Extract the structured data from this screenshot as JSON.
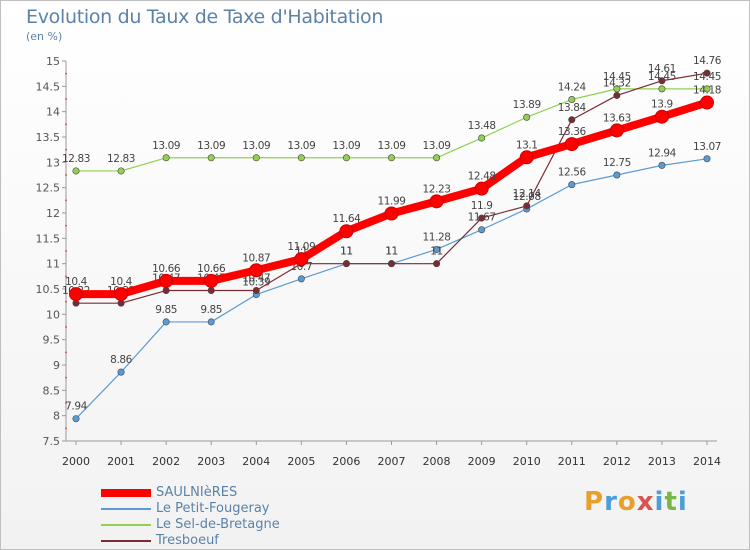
{
  "title": "Evolution du Taux de Taxe d'Habitation",
  "unit": "(en %)",
  "logo": {
    "chars": [
      "P",
      "r",
      "o",
      "x",
      "i",
      "t",
      "i"
    ],
    "colors": [
      "#e8a02a",
      "#4a9fd8",
      "#e8a02a",
      "#d9534f",
      "#4a9fd8",
      "#7ab648",
      "#4a9fd8"
    ]
  },
  "chart_data": {
    "type": "line",
    "title": "Evolution du Taux de Taxe d'Habitation",
    "ylabel": "(en %)",
    "ylim": [
      7.5,
      15
    ],
    "y_ticks": [
      "7.5",
      "8",
      "8.5",
      "9",
      "9.5",
      "10",
      "10.5",
      "11",
      "11.5",
      "12",
      "12.5",
      "13",
      "13.5",
      "14",
      "14.5",
      "15"
    ],
    "grid": false,
    "legend_position": "bottom",
    "x": [
      "2000",
      "2001",
      "2002",
      "2003",
      "2004",
      "2005",
      "2006",
      "2007",
      "2008",
      "2009",
      "2010",
      "2011",
      "2012",
      "2013",
      "2014"
    ],
    "series": [
      {
        "name": "Le Petit-Fougeray",
        "color": "#5b9bd5",
        "values": [
          7.94,
          8.86,
          9.85,
          9.85,
          10.39,
          10.7,
          11,
          11,
          11.28,
          11.67,
          12.08,
          12.56,
          12.75,
          12.94,
          13.07
        ],
        "labels": [
          "7.94",
          "8.86",
          "9.85",
          "9.85",
          "10.39",
          "10.7",
          "11",
          "11",
          "11.28",
          "11.67",
          "12.08",
          "12.56",
          "12.75",
          "12.94",
          "13.07"
        ]
      },
      {
        "name": "Le Sel-de-Bretagne",
        "color": "#92d050",
        "values": [
          12.83,
          12.83,
          13.09,
          13.09,
          13.09,
          13.09,
          13.09,
          13.09,
          13.09,
          13.48,
          13.89,
          14.24,
          14.45,
          14.45,
          14.45
        ],
        "labels": [
          "12.83",
          "12.83",
          "13.09",
          "13.09",
          "13.09",
          "13.09",
          "13.09",
          "13.09",
          "13.09",
          "13.48",
          "13.89",
          "14.24",
          "14.45",
          "14.45",
          "14.45"
        ]
      },
      {
        "name": "Tresboeuf",
        "color": "#7a2b34",
        "values": [
          10.22,
          10.22,
          10.47,
          10.47,
          10.47,
          11,
          11,
          11,
          11,
          11.9,
          12.14,
          13.84,
          14.32,
          14.61,
          14.76
        ],
        "labels": [
          "10.22",
          "10.22",
          "10.47",
          "10.47",
          "10.47",
          "11",
          "11",
          "11",
          "11",
          "11.9",
          "12.14",
          "13.84",
          "14.32",
          "14.61",
          "14.76"
        ]
      },
      {
        "name": "SAULNIèRES",
        "color": "#ff0000",
        "values": [
          10.4,
          10.4,
          10.66,
          10.66,
          10.87,
          11.09,
          11.64,
          11.99,
          12.23,
          12.48,
          13.1,
          13.36,
          13.63,
          13.9,
          14.18
        ],
        "labels": [
          "10.4",
          "10.4",
          "10.66",
          "10.66",
          "10.87",
          "11.09",
          "11.64",
          "11.99",
          "12.23",
          "12.48",
          "13.1",
          "13.36",
          "13.63",
          "13.9",
          "14.18"
        ]
      }
    ],
    "legend": [
      {
        "name": "SAULNIèRES",
        "color": "#ff0000"
      },
      {
        "name": "Le Petit-Fougeray",
        "color": "#5b9bd5"
      },
      {
        "name": "Le Sel-de-Bretagne",
        "color": "#92d050"
      },
      {
        "name": "Tresboeuf",
        "color": "#7a2b34"
      }
    ]
  }
}
